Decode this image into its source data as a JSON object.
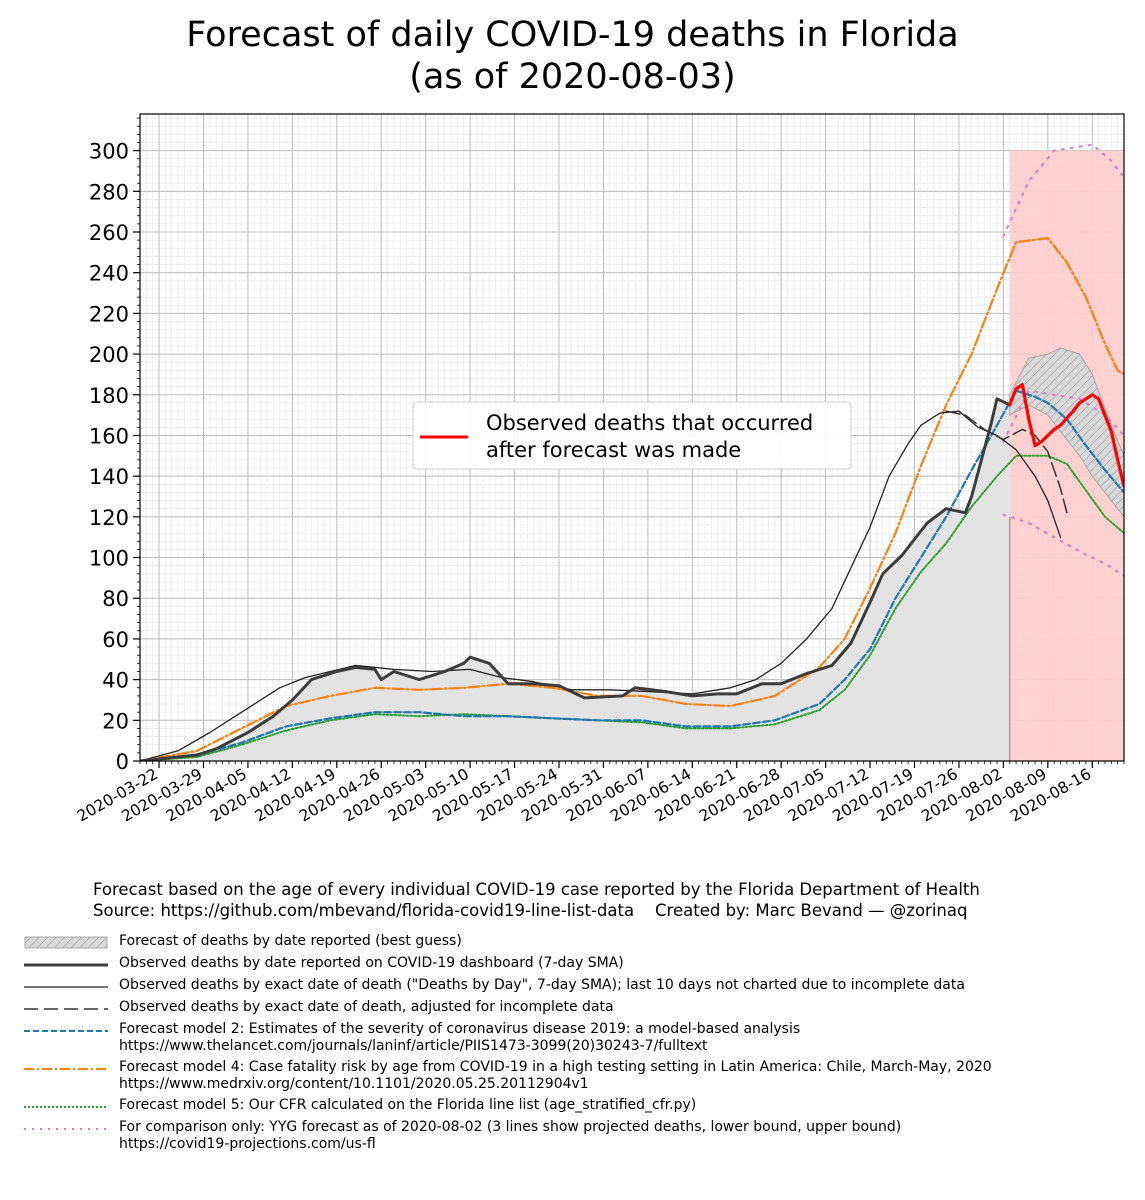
{
  "title_line1": "Forecast of daily COVID-19 deaths in Florida",
  "title_line2": "(as of 2020-08-03)",
  "footer_line1": "Forecast based on the age of every individual COVID-19 case reported by the Florida Department of Health",
  "footer_line2": "Source: https://github.com/mbevand/florida-covid19-line-list-data    Created by: Marc Bevand — @zorinaq",
  "inset_legend": [
    "Observed deaths that occurred",
    "after forecast was made"
  ],
  "legend": [
    {
      "style": "hatch",
      "text": "Forecast of deaths by date reported (best guess)"
    },
    {
      "style": "thick-dark",
      "text": "Observed deaths by date reported on COVID-19 dashboard (7-day SMA)"
    },
    {
      "style": "thin-dark",
      "text": "Observed deaths by exact date of death (\"Deaths by Day\", 7-day SMA); last 10 days not charted due to incomplete data"
    },
    {
      "style": "dash-dark",
      "text": "Observed deaths by exact date of death, adjusted for incomplete data"
    },
    {
      "style": "dash-blue",
      "text": "Forecast model 2: Estimates of the severity of coronavirus disease 2019: a model-based analysis",
      "text2": "https://www.thelancet.com/journals/laninf/article/PIIS1473-3099(20)30243-7/fulltext"
    },
    {
      "style": "dashdot-orange",
      "text": "Forecast model 4: Case fatality risk by age from COVID-19 in a high testing setting in Latin America: Chile, March-May, 2020",
      "text2": "https://www.medrxiv.org/content/10.1101/2020.05.25.20112904v1"
    },
    {
      "style": "dot-green",
      "text": "Forecast model 5: Our CFR calculated on the Florida line list (age_stratified_cfr.py)"
    },
    {
      "style": "dot-pink",
      "text": "For comparison only: YYG forecast as of 2020-08-02 (3 lines show projected deaths, lower bound, upper bound)",
      "text2": "https://covid19-projections.com/us-fl"
    }
  ],
  "colors": {
    "observed_after": "#ff0000",
    "model2": "#1f77b4",
    "model4": "#ff7f0e",
    "model5": "#2ca02c",
    "yyg": "#e377c2",
    "forecast_fill": "#ffcccc",
    "hist_fill": "#e3e3e3"
  },
  "chart_data": {
    "type": "line",
    "x_axis": "date",
    "x_start": "2020-03-19",
    "forecast_date": "2020-08-03",
    "x_ticks": [
      "2020-03-22",
      "2020-03-29",
      "2020-04-05",
      "2020-04-12",
      "2020-04-19",
      "2020-04-26",
      "2020-05-03",
      "2020-05-10",
      "2020-05-17",
      "2020-05-24",
      "2020-05-31",
      "2020-06-07",
      "2020-06-14",
      "2020-06-21",
      "2020-06-28",
      "2020-07-05",
      "2020-07-12",
      "2020-07-19",
      "2020-07-26",
      "2020-08-02",
      "2020-08-09",
      "2020-08-16"
    ],
    "y_ticks": [
      0,
      20,
      40,
      60,
      80,
      100,
      120,
      140,
      160,
      180,
      200,
      220,
      240,
      260,
      280,
      300
    ],
    "ylim": [
      0,
      318
    ],
    "xlim": [
      "2020-03-19",
      "2020-08-21"
    ],
    "grid": true,
    "inset_legend_placement": "center-right",
    "series": [
      {
        "key": "reported",
        "points": [
          [
            "2020-03-19",
            0
          ],
          [
            "2020-03-28",
            3
          ],
          [
            "2020-03-31",
            6
          ],
          [
            "2020-04-05",
            14
          ],
          [
            "2020-04-09",
            22
          ],
          [
            "2020-04-12",
            30
          ],
          [
            "2020-04-15",
            40
          ],
          [
            "2020-04-19",
            44
          ],
          [
            "2020-04-22",
            46
          ],
          [
            "2020-04-25",
            45
          ],
          [
            "2020-04-26",
            40
          ],
          [
            "2020-04-28",
            44
          ],
          [
            "2020-05-02",
            40
          ],
          [
            "2020-05-06",
            44
          ],
          [
            "2020-05-09",
            48
          ],
          [
            "2020-05-10",
            51
          ],
          [
            "2020-05-13",
            48
          ],
          [
            "2020-05-16",
            38
          ],
          [
            "2020-05-20",
            38
          ],
          [
            "2020-05-24",
            37
          ],
          [
            "2020-05-28",
            31
          ],
          [
            "2020-06-03",
            32
          ],
          [
            "2020-06-05",
            36
          ],
          [
            "2020-06-10",
            34
          ],
          [
            "2020-06-14",
            32
          ],
          [
            "2020-06-18",
            33
          ],
          [
            "2020-06-21",
            33
          ],
          [
            "2020-06-25",
            38
          ],
          [
            "2020-06-28",
            38
          ],
          [
            "2020-07-02",
            43
          ],
          [
            "2020-07-06",
            47
          ],
          [
            "2020-07-09",
            58
          ],
          [
            "2020-07-12",
            78
          ],
          [
            "2020-07-14",
            92
          ],
          [
            "2020-07-17",
            101
          ],
          [
            "2020-07-21",
            117
          ],
          [
            "2020-07-24",
            124
          ],
          [
            "2020-07-27",
            122
          ],
          [
            "2020-07-28",
            130
          ],
          [
            "2020-07-31",
            165
          ],
          [
            "2020-08-01",
            178
          ],
          [
            "2020-08-03",
            175
          ]
        ]
      },
      {
        "key": "exact",
        "points": [
          [
            "2020-03-19",
            0
          ],
          [
            "2020-03-25",
            5
          ],
          [
            "2020-03-30",
            14
          ],
          [
            "2020-04-04",
            24
          ],
          [
            "2020-04-10",
            36
          ],
          [
            "2020-04-14",
            41
          ],
          [
            "2020-04-18",
            44
          ],
          [
            "2020-04-22",
            47
          ],
          [
            "2020-04-28",
            45
          ],
          [
            "2020-05-04",
            44
          ],
          [
            "2020-05-10",
            45
          ],
          [
            "2020-05-15",
            41
          ],
          [
            "2020-05-20",
            39
          ],
          [
            "2020-05-26",
            35
          ],
          [
            "2020-06-01",
            35
          ],
          [
            "2020-06-08",
            34
          ],
          [
            "2020-06-14",
            33
          ],
          [
            "2020-06-20",
            36
          ],
          [
            "2020-06-24",
            40
          ],
          [
            "2020-06-28",
            48
          ],
          [
            "2020-07-02",
            60
          ],
          [
            "2020-07-06",
            75
          ],
          [
            "2020-07-09",
            95
          ],
          [
            "2020-07-12",
            115
          ],
          [
            "2020-07-15",
            140
          ],
          [
            "2020-07-18",
            156
          ],
          [
            "2020-07-20",
            165
          ],
          [
            "2020-07-23",
            171
          ],
          [
            "2020-07-26",
            172
          ],
          [
            "2020-07-29",
            164
          ],
          [
            "2020-08-01",
            160
          ],
          [
            "2020-08-04",
            153
          ],
          [
            "2020-08-07",
            140
          ],
          [
            "2020-08-09",
            128
          ],
          [
            "2020-08-11",
            110
          ]
        ]
      },
      {
        "key": "adjusted",
        "points": [
          [
            "2020-07-24",
            172
          ],
          [
            "2020-07-27",
            170
          ],
          [
            "2020-07-30",
            163
          ],
          [
            "2020-08-02",
            158
          ],
          [
            "2020-08-05",
            163
          ],
          [
            "2020-08-07",
            160
          ],
          [
            "2020-08-09",
            152
          ],
          [
            "2020-08-11",
            134
          ],
          [
            "2020-08-12",
            122
          ]
        ]
      },
      {
        "key": "model2",
        "points": [
          [
            "2020-03-19",
            0
          ],
          [
            "2020-03-28",
            3
          ],
          [
            "2020-04-04",
            9
          ],
          [
            "2020-04-11",
            17
          ],
          [
            "2020-04-18",
            21
          ],
          [
            "2020-04-25",
            24
          ],
          [
            "2020-05-02",
            24
          ],
          [
            "2020-05-09",
            22
          ],
          [
            "2020-05-16",
            22
          ],
          [
            "2020-05-23",
            21
          ],
          [
            "2020-05-30",
            20
          ],
          [
            "2020-06-06",
            20
          ],
          [
            "2020-06-13",
            17
          ],
          [
            "2020-06-20",
            17
          ],
          [
            "2020-06-27",
            20
          ],
          [
            "2020-07-04",
            28
          ],
          [
            "2020-07-08",
            40
          ],
          [
            "2020-07-12",
            55
          ],
          [
            "2020-07-16",
            80
          ],
          [
            "2020-07-20",
            100
          ],
          [
            "2020-07-24",
            120
          ],
          [
            "2020-07-28",
            143
          ],
          [
            "2020-08-01",
            165
          ],
          [
            "2020-08-04",
            182
          ],
          [
            "2020-08-07",
            179
          ],
          [
            "2020-08-09",
            176
          ],
          [
            "2020-08-12",
            168
          ],
          [
            "2020-08-15",
            155
          ],
          [
            "2020-08-18",
            143
          ],
          [
            "2020-08-21",
            132
          ]
        ]
      },
      {
        "key": "model4",
        "points": [
          [
            "2020-03-19",
            0
          ],
          [
            "2020-03-28",
            5
          ],
          [
            "2020-04-04",
            16
          ],
          [
            "2020-04-11",
            27
          ],
          [
            "2020-04-18",
            32
          ],
          [
            "2020-04-25",
            36
          ],
          [
            "2020-05-02",
            35
          ],
          [
            "2020-05-09",
            36
          ],
          [
            "2020-05-16",
            38
          ],
          [
            "2020-05-23",
            36
          ],
          [
            "2020-05-30",
            32
          ],
          [
            "2020-06-06",
            32
          ],
          [
            "2020-06-13",
            28
          ],
          [
            "2020-06-20",
            27
          ],
          [
            "2020-06-27",
            32
          ],
          [
            "2020-07-04",
            46
          ],
          [
            "2020-07-08",
            60
          ],
          [
            "2020-07-12",
            85
          ],
          [
            "2020-07-16",
            112
          ],
          [
            "2020-07-20",
            145
          ],
          [
            "2020-07-24",
            175
          ],
          [
            "2020-07-28",
            200
          ],
          [
            "2020-08-01",
            232
          ],
          [
            "2020-08-04",
            255
          ],
          [
            "2020-08-09",
            257
          ],
          [
            "2020-08-12",
            245
          ],
          [
            "2020-08-15",
            228
          ],
          [
            "2020-08-18",
            205
          ],
          [
            "2020-08-20",
            192
          ],
          [
            "2020-08-21",
            190
          ]
        ]
      },
      {
        "key": "model5",
        "points": [
          [
            "2020-03-19",
            0
          ],
          [
            "2020-03-28",
            2
          ],
          [
            "2020-04-04",
            8
          ],
          [
            "2020-04-11",
            15
          ],
          [
            "2020-04-18",
            20
          ],
          [
            "2020-04-25",
            23
          ],
          [
            "2020-05-02",
            22
          ],
          [
            "2020-05-09",
            23
          ],
          [
            "2020-05-16",
            22
          ],
          [
            "2020-05-23",
            21
          ],
          [
            "2020-05-30",
            20
          ],
          [
            "2020-06-06",
            19
          ],
          [
            "2020-06-13",
            16
          ],
          [
            "2020-06-20",
            16
          ],
          [
            "2020-06-27",
            18
          ],
          [
            "2020-07-04",
            25
          ],
          [
            "2020-07-08",
            35
          ],
          [
            "2020-07-12",
            52
          ],
          [
            "2020-07-16",
            75
          ],
          [
            "2020-07-20",
            93
          ],
          [
            "2020-07-24",
            107
          ],
          [
            "2020-07-28",
            125
          ],
          [
            "2020-08-01",
            140
          ],
          [
            "2020-08-04",
            150
          ],
          [
            "2020-08-09",
            150
          ],
          [
            "2020-08-12",
            146
          ],
          [
            "2020-08-15",
            133
          ],
          [
            "2020-08-18",
            120
          ],
          [
            "2020-08-21",
            112
          ]
        ]
      },
      {
        "key": "yyg_mid",
        "points": [
          [
            "2020-08-02",
            157
          ],
          [
            "2020-08-06",
            182
          ],
          [
            "2020-08-10",
            180
          ],
          [
            "2020-08-14",
            178
          ],
          [
            "2020-08-18",
            170
          ],
          [
            "2020-08-21",
            160
          ]
        ]
      },
      {
        "key": "yyg_low",
        "points": [
          [
            "2020-08-02",
            121
          ],
          [
            "2020-08-06",
            117
          ],
          [
            "2020-08-10",
            110
          ],
          [
            "2020-08-14",
            103
          ],
          [
            "2020-08-18",
            97
          ],
          [
            "2020-08-21",
            91
          ]
        ]
      },
      {
        "key": "yyg_high",
        "points": [
          [
            "2020-08-02",
            258
          ],
          [
            "2020-08-06",
            285
          ],
          [
            "2020-08-10",
            300
          ],
          [
            "2020-08-14",
            302
          ],
          [
            "2020-08-16",
            303
          ],
          [
            "2020-08-19",
            295
          ],
          [
            "2020-08-21",
            287
          ]
        ]
      },
      {
        "key": "after_forecast",
        "points": [
          [
            "2020-08-03",
            175
          ],
          [
            "2020-08-04",
            183
          ],
          [
            "2020-08-05",
            185
          ],
          [
            "2020-08-06",
            168
          ],
          [
            "2020-08-07",
            155
          ],
          [
            "2020-08-08",
            157
          ],
          [
            "2020-08-10",
            163
          ],
          [
            "2020-08-11",
            165
          ],
          [
            "2020-08-13",
            172
          ],
          [
            "2020-08-14",
            176
          ],
          [
            "2020-08-16",
            180
          ],
          [
            "2020-08-17",
            178
          ],
          [
            "2020-08-19",
            162
          ],
          [
            "2020-08-20",
            148
          ],
          [
            "2020-08-21",
            135
          ]
        ]
      },
      {
        "key": "band_upper",
        "points": [
          [
            "2020-08-03",
            180
          ],
          [
            "2020-08-06",
            198
          ],
          [
            "2020-08-09",
            200
          ],
          [
            "2020-08-11",
            203
          ],
          [
            "2020-08-14",
            200
          ],
          [
            "2020-08-16",
            190
          ],
          [
            "2020-08-19",
            165
          ],
          [
            "2020-08-21",
            150
          ]
        ]
      },
      {
        "key": "band_lower",
        "points": [
          [
            "2020-08-03",
            170
          ],
          [
            "2020-08-06",
            175
          ],
          [
            "2020-08-09",
            170
          ],
          [
            "2020-08-11",
            162
          ],
          [
            "2020-08-14",
            150
          ],
          [
            "2020-08-16",
            140
          ],
          [
            "2020-08-19",
            128
          ],
          [
            "2020-08-21",
            120
          ]
        ]
      }
    ]
  }
}
